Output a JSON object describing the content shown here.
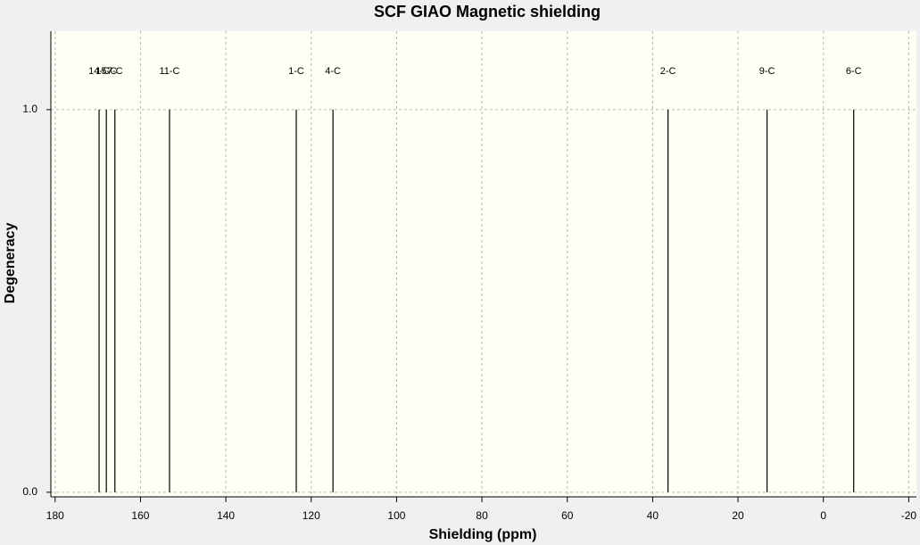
{
  "chart_data": {
    "type": "stick",
    "title": "SCF GIAO Magnetic shielding",
    "x_label": "Shielding (ppm)",
    "y_label": "Degeneracy",
    "x": [
      169.7,
      168.0,
      166.0,
      153.2,
      123.5,
      114.9,
      36.4,
      13.2,
      -7.1
    ],
    "values": [
      1,
      1,
      1,
      1,
      1,
      1,
      1,
      1,
      1
    ],
    "labels": [
      "14-C",
      "15-C",
      "7-C",
      "11-C",
      "1-C",
      "4-C",
      "2-C",
      "9-C",
      "6-C"
    ],
    "color": "#000000",
    "xlim": [
      181,
      -21.8
    ],
    "xticks": [
      180,
      160,
      140,
      120,
      100,
      80,
      60,
      40,
      20,
      0,
      -20
    ],
    "ylim": [
      -0.012,
      1.205
    ],
    "yticks": [
      {
        "value": 0,
        "label": "0.0"
      },
      {
        "value": 1,
        "label": "1.0"
      }
    ],
    "grid": true
  }
}
